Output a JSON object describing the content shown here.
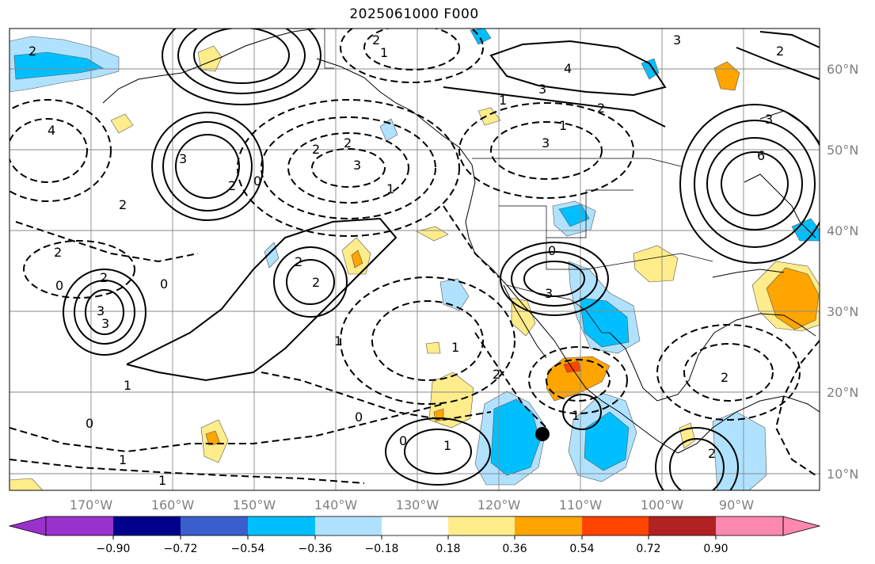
{
  "title": "2025061000 F000",
  "map": {
    "lon_labels": [
      "170°W",
      "160°W",
      "150°W",
      "140°W",
      "130°W",
      "120°W",
      "110°W",
      "100°W",
      "90°W"
    ],
    "lat_labels": [
      "60°N",
      "50°N",
      "40°N",
      "30°N",
      "20°N",
      "10°N"
    ],
    "contour_labels": [
      "2",
      "1",
      "4",
      "3",
      "1",
      "3",
      "2",
      "1",
      "3",
      "2",
      "3",
      "6",
      "4",
      "2",
      "2",
      "3",
      "1",
      "2",
      "3",
      "0",
      "2",
      "2",
      "2",
      "2",
      "0",
      "0",
      "3",
      "3",
      "1",
      "1",
      "0",
      "2",
      "2",
      "1",
      "1",
      "1",
      "0",
      "0",
      "1",
      "2",
      "3",
      "2",
      "1",
      "0",
      "2"
    ],
    "marker": "black dot near 114°W 15°N"
  },
  "colorbar": {
    "ticks": [
      "−0.90",
      "−0.72",
      "−0.54",
      "−0.36",
      "−0.18",
      "0.18",
      "0.36",
      "0.54",
      "0.72",
      "0.90"
    ],
    "colors": [
      "#9932cc",
      "#00008b",
      "#3a5fcd",
      "#00bfff",
      "#b0e2ff",
      "#ffffff",
      "#ffec8b",
      "#ffa500",
      "#ff4500",
      "#b22222",
      "#ff88b0"
    ]
  }
}
